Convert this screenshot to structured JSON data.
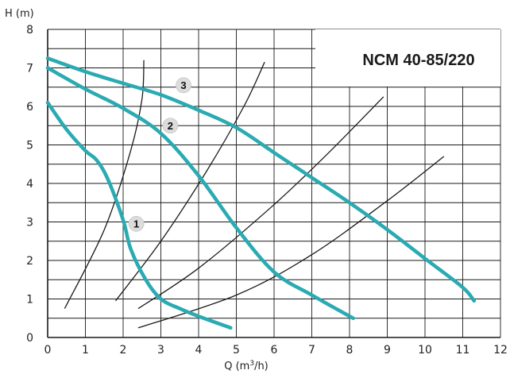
{
  "chart_data": {
    "type": "line",
    "title": "NCM 40-85/220",
    "xlabel": "Q (m³/h)",
    "ylabel": "H (m)",
    "xlim": [
      0,
      12
    ],
    "ylim": [
      0,
      8
    ],
    "x_ticks": [
      "0",
      "1",
      "2",
      "3",
      "4",
      "5",
      "6",
      "7",
      "8",
      "9",
      "10",
      "11",
      "12"
    ],
    "y_ticks": [
      "0",
      "1",
      "2",
      "3",
      "4",
      "5",
      "6",
      "7",
      "8"
    ],
    "grid": true,
    "colors": {
      "curve": "#2aaab2",
      "system": "#1a1a1a",
      "grid": "#1a1a1a",
      "badge": "#dcdcdc"
    },
    "series": [
      {
        "name": "1",
        "kind": "pump",
        "points": [
          [
            0,
            6.1
          ],
          [
            0.5,
            5.4
          ],
          [
            1,
            4.85
          ],
          [
            1.3,
            4.6
          ],
          [
            1.6,
            4.1
          ],
          [
            2,
            3.05
          ],
          [
            2.2,
            2.3
          ],
          [
            2.6,
            1.5
          ],
          [
            3,
            1.0
          ],
          [
            3.5,
            0.75
          ],
          [
            4,
            0.55
          ],
          [
            4.85,
            0.25
          ]
        ]
      },
      {
        "name": "2",
        "kind": "pump",
        "points": [
          [
            0,
            7.0
          ],
          [
            1,
            6.45
          ],
          [
            2,
            5.95
          ],
          [
            3,
            5.3
          ],
          [
            4,
            4.2
          ],
          [
            5,
            2.85
          ],
          [
            6,
            1.7
          ],
          [
            7,
            1.1
          ],
          [
            8.1,
            0.5
          ]
        ]
      },
      {
        "name": "3",
        "kind": "pump",
        "points": [
          [
            0,
            7.25
          ],
          [
            1,
            6.9
          ],
          [
            2,
            6.6
          ],
          [
            3,
            6.3
          ],
          [
            4,
            5.9
          ],
          [
            5,
            5.45
          ],
          [
            6,
            4.8
          ],
          [
            7,
            4.15
          ],
          [
            8,
            3.5
          ],
          [
            9,
            2.8
          ],
          [
            10,
            2.05
          ],
          [
            11,
            1.3
          ],
          [
            11.3,
            0.95
          ]
        ]
      },
      {
        "kind": "system",
        "points": [
          [
            0.45,
            0.75
          ],
          [
            1.5,
            2.8
          ],
          [
            2.2,
            4.85
          ],
          [
            2.5,
            6.2
          ],
          [
            2.55,
            7.2
          ]
        ]
      },
      {
        "kind": "system",
        "points": [
          [
            1.8,
            0.95
          ],
          [
            3,
            2.5
          ],
          [
            4.2,
            4.3
          ],
          [
            5.2,
            6.0
          ],
          [
            5.75,
            7.15
          ]
        ]
      },
      {
        "kind": "system",
        "points": [
          [
            2.4,
            0.75
          ],
          [
            4,
            1.8
          ],
          [
            6,
            3.45
          ],
          [
            7.5,
            4.85
          ],
          [
            8.9,
            6.25
          ]
        ]
      },
      {
        "kind": "system",
        "points": [
          [
            2.4,
            0.25
          ],
          [
            5,
            1.1
          ],
          [
            7,
            2.15
          ],
          [
            9,
            3.55
          ],
          [
            10.5,
            4.7
          ]
        ]
      }
    ],
    "labels": [
      {
        "text": "1",
        "x": 2.35,
        "y": 2.95
      },
      {
        "text": "2",
        "x": 3.25,
        "y": 5.5
      },
      {
        "text": "3",
        "x": 3.6,
        "y": 6.55
      }
    ]
  }
}
